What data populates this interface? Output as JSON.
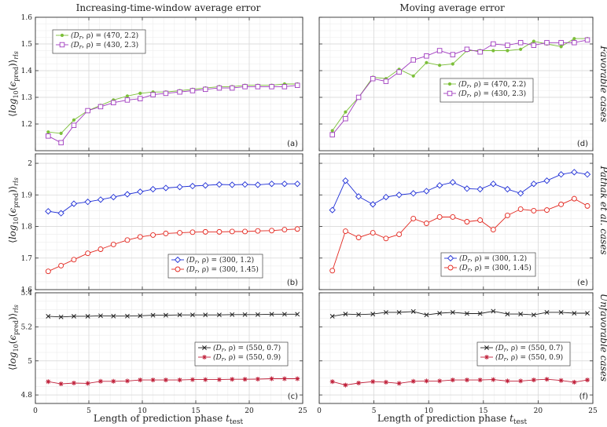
{
  "figure": {
    "column_titles": [
      "Increasing-time-window average error",
      "Moving average error"
    ],
    "xlabel": "Length of prediction phase t_test",
    "ylabel": "⟨log10(εpred)⟩rls",
    "row_labels": [
      "Favorable cases",
      "Pathak et al. cases",
      "Unfavorable cases"
    ]
  },
  "colors": {
    "green": "#7cbf3a",
    "purple": "#a03cbf",
    "blue": "#1f2fd6",
    "red": "#e3261e",
    "black": "#222222",
    "crimson": "#c0203a"
  },
  "chart_data": [
    {
      "panel": "(a)",
      "type": "line",
      "x": [
        1.2,
        2.4,
        3.6,
        4.9,
        6.1,
        7.3,
        8.6,
        9.8,
        11.0,
        12.2,
        13.5,
        14.7,
        15.9,
        17.2,
        18.4,
        19.6,
        20.8,
        22.1,
        23.3,
        24.5
      ],
      "xlim": [
        0,
        25
      ],
      "ylim": [
        1.1,
        1.6
      ],
      "yticks": [
        1.2,
        1.3,
        1.4,
        1.5,
        1.6
      ],
      "xticks": [
        0,
        5,
        10,
        15,
        20,
        25
      ],
      "legend_position": "top-left",
      "series": [
        {
          "name": "(Dr, ρ) = (470, 2.2)",
          "marker": "dot",
          "color_key": "green",
          "values": [
            1.17,
            1.165,
            1.215,
            1.25,
            1.27,
            1.29,
            1.305,
            1.315,
            1.32,
            1.32,
            1.325,
            1.33,
            1.335,
            1.34,
            1.34,
            1.345,
            1.345,
            1.345,
            1.35,
            1.35
          ]
        },
        {
          "name": "(Dr, ρ) = (430, 2.3)",
          "marker": "square",
          "color_key": "purple",
          "values": [
            1.155,
            1.13,
            1.195,
            1.25,
            1.265,
            1.28,
            1.29,
            1.295,
            1.31,
            1.315,
            1.32,
            1.325,
            1.33,
            1.335,
            1.335,
            1.34,
            1.34,
            1.34,
            1.34,
            1.345
          ]
        }
      ]
    },
    {
      "panel": "(d)",
      "type": "line",
      "x": [
        1.2,
        2.4,
        3.6,
        4.9,
        6.1,
        7.3,
        8.6,
        9.8,
        11.0,
        12.2,
        13.5,
        14.7,
        15.9,
        17.2,
        18.4,
        19.6,
        20.8,
        22.1,
        23.3,
        24.5
      ],
      "xlim": [
        0,
        25
      ],
      "ylim": [
        1.1,
        1.6
      ],
      "yticks": [
        1.2,
        1.3,
        1.4,
        1.5,
        1.6
      ],
      "xticks": [
        0,
        5,
        10,
        15,
        20,
        25
      ],
      "legend_position": "lower-center",
      "series": [
        {
          "name": "(Dr, ρ) = (470, 2.2)",
          "marker": "dot",
          "color_key": "green",
          "values": [
            1.175,
            1.245,
            1.3,
            1.375,
            1.37,
            1.405,
            1.38,
            1.43,
            1.42,
            1.425,
            1.475,
            1.475,
            1.475,
            1.475,
            1.48,
            1.51,
            1.5,
            1.49,
            1.52,
            1.52
          ]
        },
        {
          "name": "(Dr, ρ) = (430, 2.3)",
          "marker": "square",
          "color_key": "purple",
          "values": [
            1.16,
            1.22,
            1.3,
            1.37,
            1.36,
            1.395,
            1.44,
            1.455,
            1.475,
            1.46,
            1.48,
            1.47,
            1.5,
            1.495,
            1.505,
            1.495,
            1.505,
            1.505,
            1.505,
            1.515
          ]
        }
      ]
    },
    {
      "panel": "(b)",
      "type": "line",
      "x": [
        1.2,
        2.4,
        3.6,
        4.9,
        6.1,
        7.3,
        8.6,
        9.8,
        11.0,
        12.2,
        13.5,
        14.7,
        15.9,
        17.2,
        18.4,
        19.6,
        20.8,
        22.1,
        23.3,
        24.5
      ],
      "xlim": [
        0,
        25
      ],
      "ylim": [
        1.6,
        2.03
      ],
      "yticks": [
        1.6,
        1.7,
        1.8,
        1.9,
        2.0
      ],
      "xticks": [
        0,
        5,
        10,
        15,
        20,
        25
      ],
      "legend_position": "lower-center",
      "series": [
        {
          "name": "(Dr, ρ) = (300, 1.2)",
          "marker": "diamond",
          "color_key": "blue",
          "values": [
            1.848,
            1.842,
            1.872,
            1.878,
            1.885,
            1.893,
            1.902,
            1.91,
            1.918,
            1.922,
            1.925,
            1.928,
            1.93,
            1.933,
            1.932,
            1.933,
            1.932,
            1.935,
            1.935,
            1.935
          ]
        },
        {
          "name": "(Dr, ρ) = (300, 1.45)",
          "marker": "circle",
          "color_key": "red",
          "values": [
            1.658,
            1.676,
            1.695,
            1.715,
            1.728,
            1.743,
            1.757,
            1.767,
            1.773,
            1.778,
            1.78,
            1.782,
            1.783,
            1.783,
            1.784,
            1.784,
            1.786,
            1.787,
            1.79,
            1.792
          ]
        }
      ]
    },
    {
      "panel": "(e)",
      "type": "line",
      "x": [
        1.2,
        2.4,
        3.6,
        4.9,
        6.1,
        7.3,
        8.6,
        9.8,
        11.0,
        12.2,
        13.5,
        14.7,
        15.9,
        17.2,
        18.4,
        19.6,
        20.8,
        22.1,
        23.3,
        24.5
      ],
      "xlim": [
        0,
        25
      ],
      "ylim": [
        1.6,
        2.03
      ],
      "yticks": [
        1.6,
        1.7,
        1.8,
        1.9,
        2.0
      ],
      "xticks": [
        0,
        5,
        10,
        15,
        20,
        25
      ],
      "legend_position": "lower-center",
      "series": [
        {
          "name": "(Dr, ρ) = (300, 1.2)",
          "marker": "diamond",
          "color_key": "blue",
          "values": [
            1.852,
            1.945,
            1.895,
            1.87,
            1.893,
            1.9,
            1.905,
            1.912,
            1.93,
            1.94,
            1.92,
            1.918,
            1.935,
            1.918,
            1.905,
            1.935,
            1.945,
            1.965,
            1.972,
            1.965
          ]
        },
        {
          "name": "(Dr, ρ) = (300, 1.45)",
          "marker": "circle",
          "color_key": "red",
          "values": [
            1.66,
            1.785,
            1.765,
            1.78,
            1.762,
            1.775,
            1.825,
            1.81,
            1.83,
            1.83,
            1.815,
            1.82,
            1.79,
            1.835,
            1.855,
            1.85,
            1.852,
            1.87,
            1.888,
            1.865
          ]
        }
      ]
    },
    {
      "panel": "(c)",
      "type": "line",
      "x": [
        1.2,
        2.4,
        3.6,
        4.9,
        6.1,
        7.3,
        8.6,
        9.8,
        11.0,
        12.2,
        13.5,
        14.7,
        15.9,
        17.2,
        18.4,
        19.6,
        20.8,
        22.1,
        23.3,
        24.5
      ],
      "xlim": [
        0,
        25
      ],
      "ylim": [
        4.75,
        5.4
      ],
      "yticks": [
        4.8,
        5.0,
        5.2,
        5.4
      ],
      "ytick_labels": [
        "4.8",
        "5",
        "5.2",
        "5.4"
      ],
      "xticks": [
        0,
        5,
        10,
        15,
        20,
        25
      ],
      "legend_position": "right-center",
      "series": [
        {
          "name": "(Dr, ρ) = (550, 0.7)",
          "marker": "x",
          "color_key": "black",
          "values": [
            5.262,
            5.258,
            5.262,
            5.262,
            5.265,
            5.263,
            5.263,
            5.265,
            5.268,
            5.268,
            5.27,
            5.27,
            5.27,
            5.27,
            5.272,
            5.272,
            5.272,
            5.274,
            5.274,
            5.274
          ]
        },
        {
          "name": "(Dr, ρ) = (550, 0.9)",
          "marker": "star",
          "color_key": "crimson",
          "values": [
            4.878,
            4.865,
            4.87,
            4.868,
            4.88,
            4.88,
            4.882,
            4.888,
            4.888,
            4.888,
            4.888,
            4.89,
            4.89,
            4.89,
            4.892,
            4.892,
            4.893,
            4.895,
            4.895,
            4.895
          ]
        }
      ]
    },
    {
      "panel": "(f)",
      "type": "line",
      "x": [
        1.2,
        2.4,
        3.6,
        4.9,
        6.1,
        7.3,
        8.6,
        9.8,
        11.0,
        12.2,
        13.5,
        14.7,
        15.9,
        17.2,
        18.4,
        19.6,
        20.8,
        22.1,
        23.3,
        24.5
      ],
      "xlim": [
        0,
        25
      ],
      "ylim": [
        4.75,
        5.4
      ],
      "yticks": [
        4.8,
        5.0,
        5.2,
        5.4
      ],
      "ytick_labels": [
        "4.8",
        "5",
        "5.2",
        "5.4"
      ],
      "xticks": [
        0,
        5,
        10,
        15,
        20,
        25
      ],
      "legend_position": "right-center",
      "series": [
        {
          "name": "(Dr, ρ) = (550, 0.7)",
          "marker": "x",
          "color_key": "black",
          "values": [
            5.262,
            5.275,
            5.272,
            5.275,
            5.285,
            5.285,
            5.29,
            5.27,
            5.28,
            5.285,
            5.278,
            5.278,
            5.292,
            5.275,
            5.275,
            5.27,
            5.285,
            5.285,
            5.28,
            5.28
          ]
        },
        {
          "name": "(Dr, ρ) = (550, 0.9)",
          "marker": "star",
          "color_key": "crimson",
          "values": [
            4.878,
            4.858,
            4.87,
            4.878,
            4.875,
            4.868,
            4.88,
            4.882,
            4.882,
            4.888,
            4.888,
            4.888,
            4.89,
            4.882,
            4.882,
            4.888,
            4.892,
            4.885,
            4.875,
            4.888
          ]
        }
      ]
    }
  ]
}
